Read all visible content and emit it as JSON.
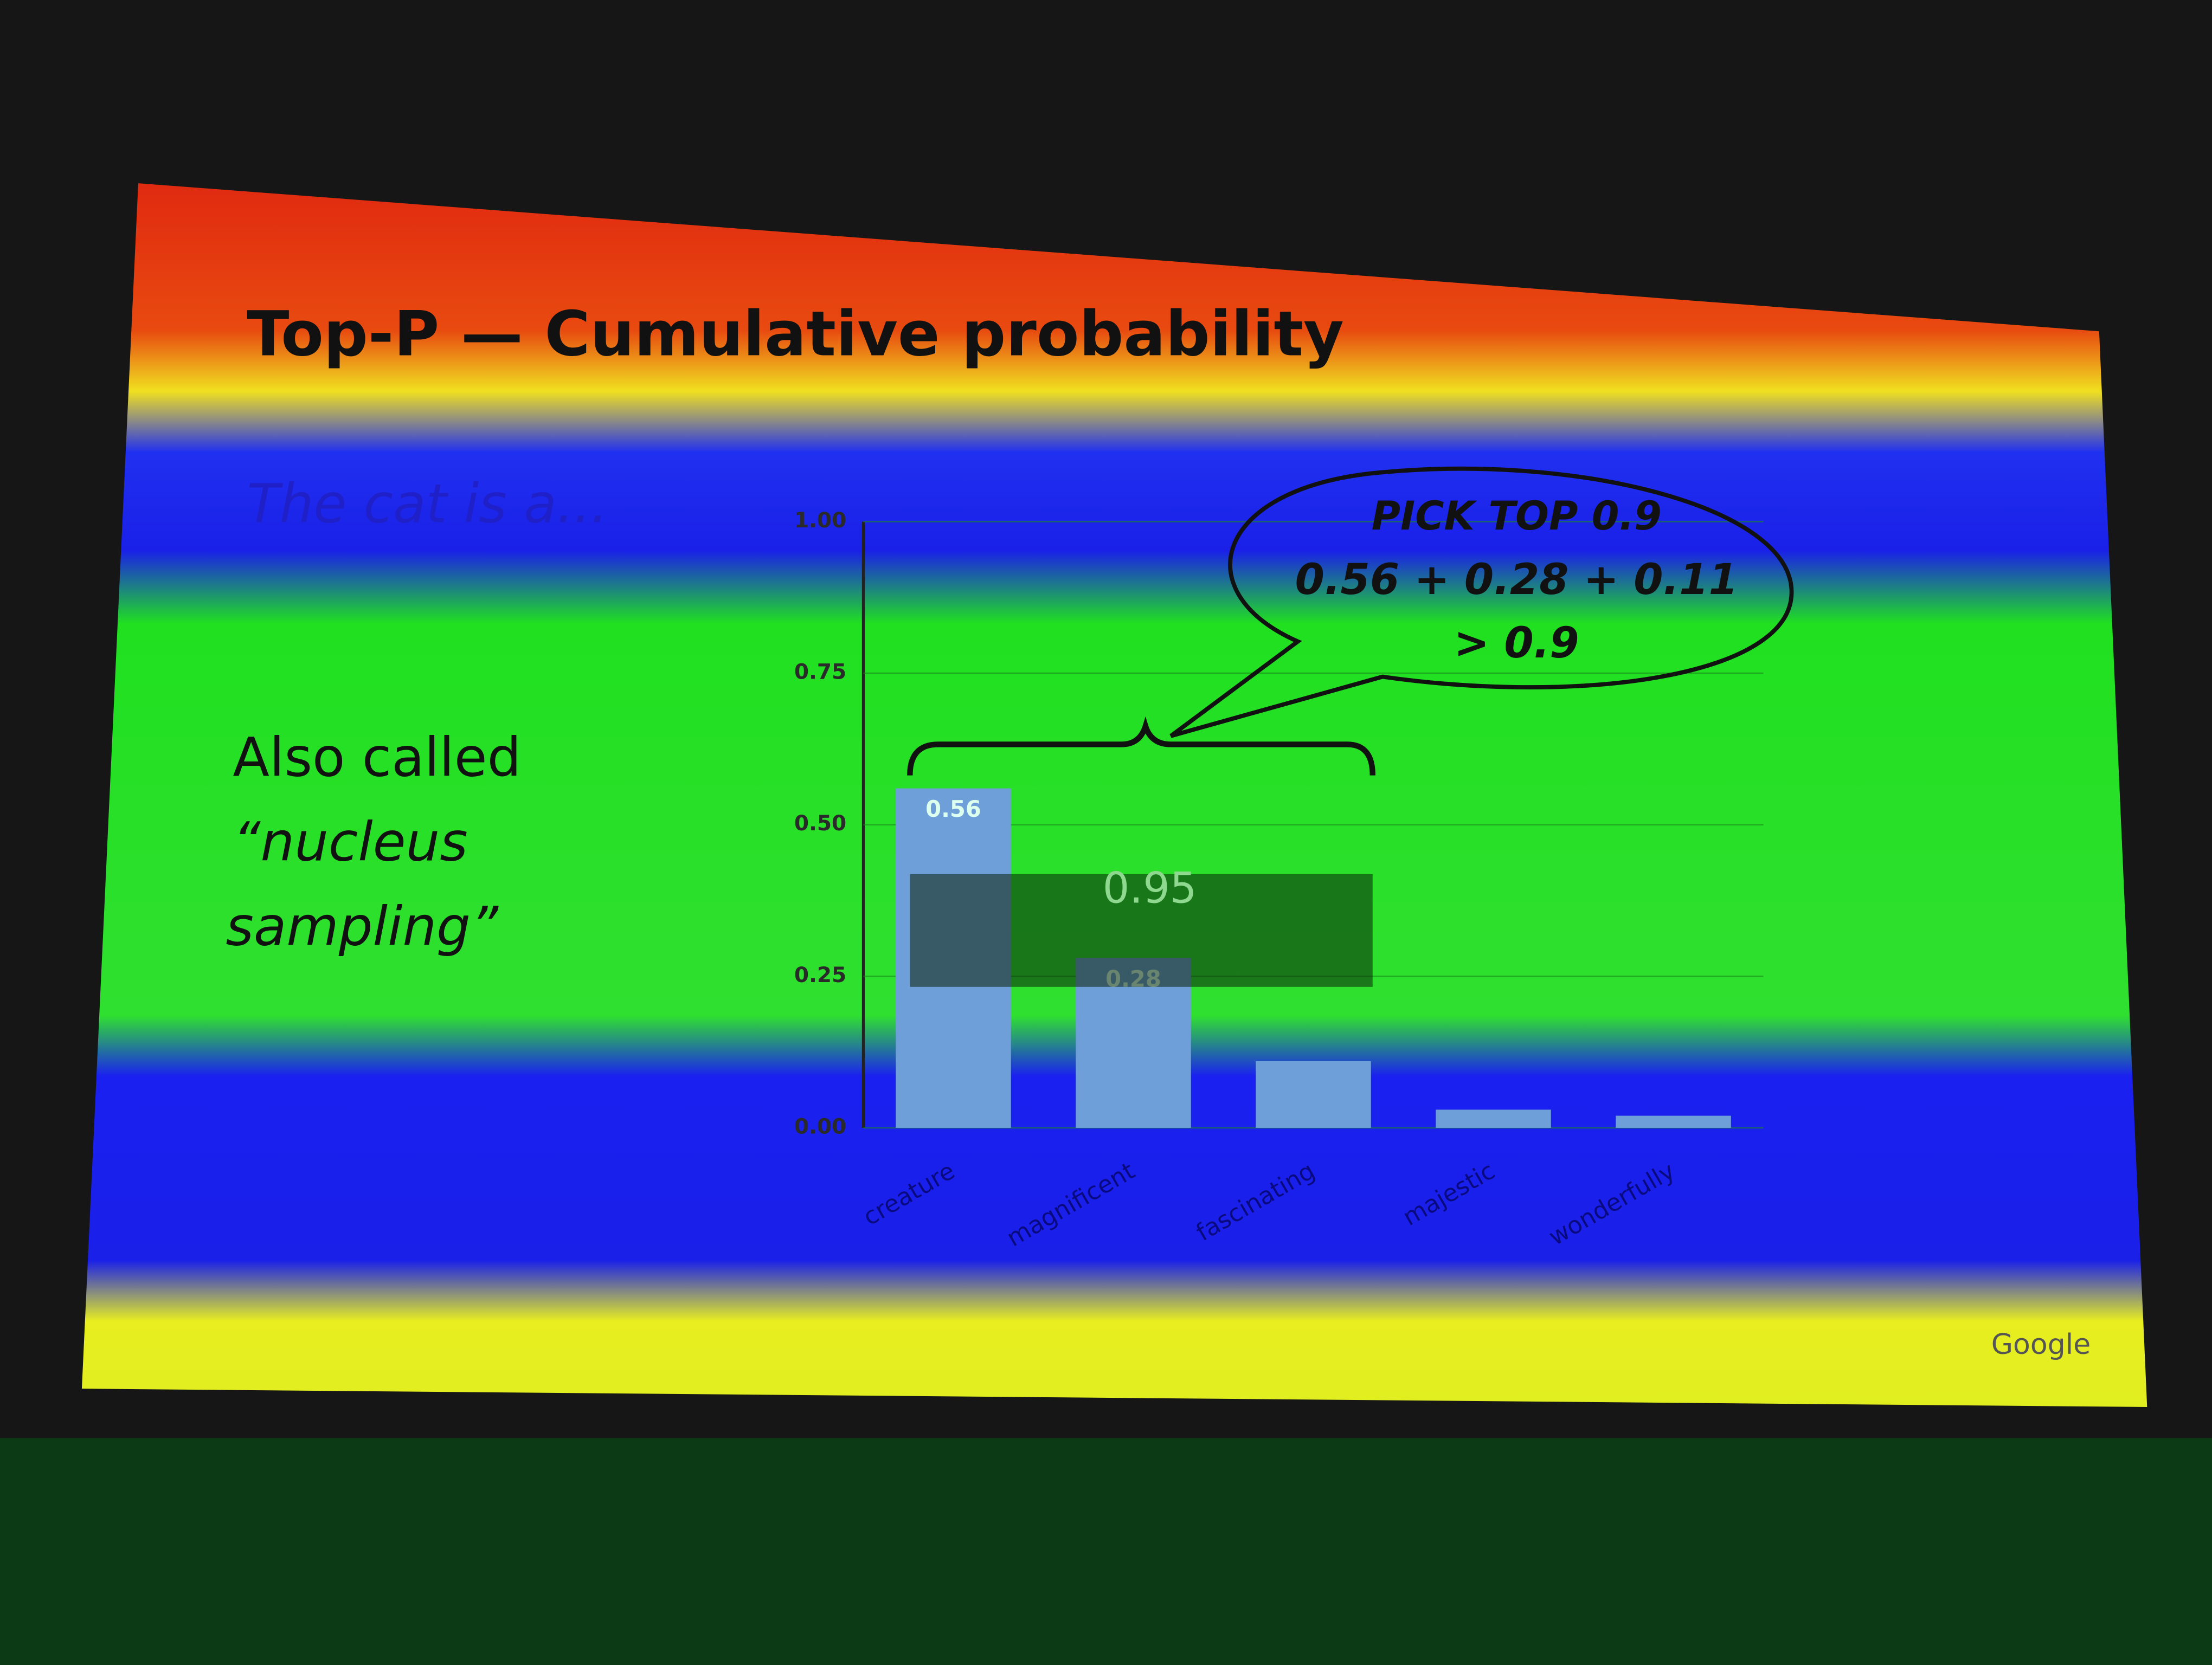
{
  "chart_data": {
    "type": "bar",
    "title": "Top-P — Cumulative probability",
    "subtitle": "The cat is a...",
    "side_text": [
      "Also called",
      "“nucleus",
      "sampling”"
    ],
    "categories": [
      "creature",
      "magnificent",
      "fascinating",
      "majestic",
      "wonderfully"
    ],
    "values": [
      0.56,
      0.28,
      0.11,
      0.03,
      0.02
    ],
    "value_labels": [
      "0.56",
      "0.28",
      null,
      null,
      null
    ],
    "color": "#6f9fd8",
    "ylim": [
      0,
      1
    ],
    "yticks": [
      {
        "value": 0,
        "label": "0.00"
      },
      {
        "value": 0.25,
        "label": "0.25"
      },
      {
        "value": 0.5,
        "label": "0.50"
      },
      {
        "value": 0.75,
        "label": "0.75"
      },
      {
        "value": 1,
        "label": "1.00"
      }
    ],
    "annotations": {
      "bubble": [
        "PICK TOP 0.9",
        "0.56 + 0.28 + 0.11",
        "> 0.9"
      ],
      "cumulative": "0.95"
    },
    "footer": "Google"
  }
}
